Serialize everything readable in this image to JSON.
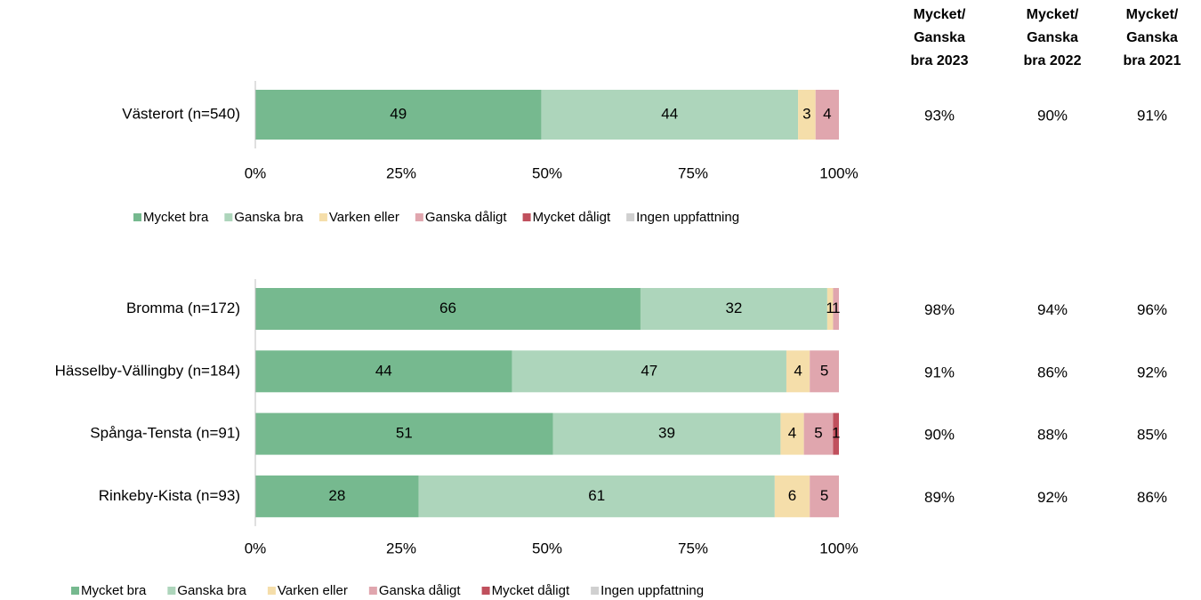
{
  "chart_data": [
    {
      "type": "bar",
      "orientation": "horizontal",
      "stacked": true,
      "categories": [
        "Västerort (n=540)"
      ],
      "series": [
        {
          "name": "Mycket bra",
          "color": "#76b98f",
          "values": [
            49
          ]
        },
        {
          "name": "Ganska bra",
          "color": "#add5bb",
          "values": [
            44
          ]
        },
        {
          "name": "Varken eller",
          "color": "#f5deaa",
          "values": [
            3
          ]
        },
        {
          "name": "Ganska dåligt",
          "color": "#e0a6ae",
          "values": [
            4
          ]
        },
        {
          "name": "Mycket dåligt",
          "color": "#c0505d",
          "values": [
            null
          ]
        },
        {
          "name": "Ingen uppfattning",
          "color": "#d0d0d0",
          "values": [
            null
          ]
        }
      ],
      "xlim": [
        0,
        100
      ],
      "xticks": [
        {
          "value": 0,
          "label": "0%"
        },
        {
          "value": 25,
          "label": "25%"
        },
        {
          "value": 50,
          "label": "50%"
        },
        {
          "value": 75,
          "label": "75%"
        },
        {
          "value": 100,
          "label": "100%"
        }
      ],
      "legend": "bottom"
    },
    {
      "type": "bar",
      "orientation": "horizontal",
      "stacked": true,
      "categories": [
        "Bromma (n=172)",
        "Hässelby-Vällingby (n=184)",
        "Spånga-Tensta (n=91)",
        "Rinkeby-Kista (n=93)"
      ],
      "series": [
        {
          "name": "Mycket bra",
          "color": "#76b98f",
          "values": [
            66,
            44,
            51,
            28
          ]
        },
        {
          "name": "Ganska bra",
          "color": "#add5bb",
          "values": [
            32,
            47,
            39,
            61
          ]
        },
        {
          "name": "Varken eller",
          "color": "#f5deaa",
          "values": [
            1,
            4,
            4,
            6
          ]
        },
        {
          "name": "Ganska dåligt",
          "color": "#e0a6ae",
          "values": [
            1,
            5,
            5,
            5
          ]
        },
        {
          "name": "Mycket dåligt",
          "color": "#c0505d",
          "values": [
            null,
            null,
            1,
            null
          ]
        },
        {
          "name": "Ingen uppfattning",
          "color": "#d0d0d0",
          "values": [
            null,
            null,
            null,
            null
          ]
        }
      ],
      "xlim": [
        0,
        100
      ],
      "xticks": [
        {
          "value": 0,
          "label": "0%"
        },
        {
          "value": 25,
          "label": "25%"
        },
        {
          "value": 50,
          "label": "50%"
        },
        {
          "value": 75,
          "label": "75%"
        },
        {
          "value": 100,
          "label": "100%"
        }
      ],
      "legend": "bottom"
    }
  ],
  "summary": {
    "headers": [
      [
        "Mycket/",
        "Ganska",
        "bra 2023"
      ],
      [
        "Mycket/",
        "Ganska",
        "bra 2022"
      ],
      [
        "Mycket/",
        "Ganska",
        "bra 2021"
      ]
    ],
    "rows": [
      [
        "93%",
        "90%",
        "91%"
      ],
      [
        "98%",
        "94%",
        "96%"
      ],
      [
        "91%",
        "86%",
        "92%"
      ],
      [
        "90%",
        "88%",
        "85%"
      ],
      [
        "89%",
        "92%",
        "86%"
      ]
    ]
  }
}
